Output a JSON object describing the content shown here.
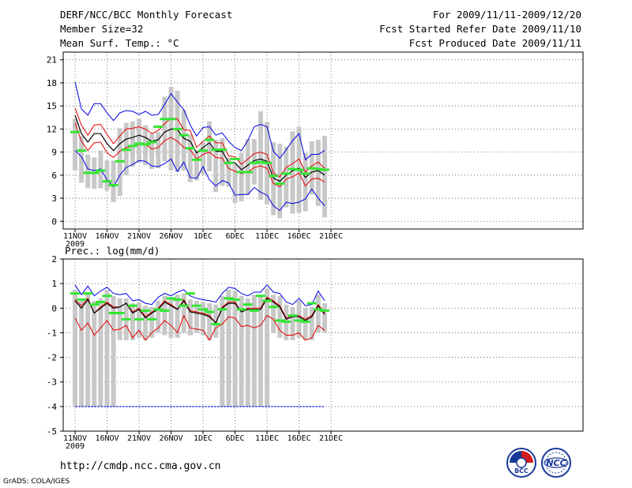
{
  "header": {
    "title": "DERF/NCC/BCC Monthly Forecast",
    "member_size": "Member Size=32",
    "variable": "Mean Surf. Temp.: °C",
    "period": "For 2009/11/11-2009/12/20",
    "started": "Fcst Started Refer Date 2009/11/10",
    "produced": "Fcst Produced Date 2009/11/11"
  },
  "footer": {
    "url": "http://cmdp.ncc.cma.gov.cn",
    "grads": "GrADS: COLA/IGES",
    "logo_left": "BCC",
    "logo_right": "NCC"
  },
  "colors": {
    "box": "#c8c8c8",
    "median": "#32e632",
    "mean": "#000000",
    "pct": "#e60000",
    "extreme": "#0000e6",
    "grid": "#555555"
  },
  "chart_data": [
    {
      "type": "line",
      "title": "Mean Surf. Temp.: °C",
      "x_tick_labels": [
        "11NOV",
        "16NOV",
        "21NOV",
        "26NOV",
        "1DEC",
        "6DEC",
        "11DEC",
        "16DEC",
        "21DEC"
      ],
      "x_year_label": "2009",
      "ylim": [
        -1,
        22
      ],
      "y_ticks": [
        0,
        3,
        6,
        9,
        12,
        15,
        18,
        21
      ],
      "days": 40,
      "series": [
        {
          "name": "max",
          "values": [
            18.1,
            14.6,
            13.8,
            15.3,
            15.3,
            14.1,
            13.1,
            14.1,
            14.4,
            14.3,
            13.9,
            14.3,
            13.8,
            13.9,
            15.2,
            16.6,
            15.5,
            14.5,
            12.5,
            11.1,
            12.2,
            12.3,
            11.2,
            11.5,
            10.4,
            9.6,
            9.2,
            10.5,
            12.3,
            12.6,
            12.3,
            9.1,
            8.2,
            9.3,
            10.5,
            11.4,
            8.0,
            8.7,
            8.7,
            9.2
          ]
        },
        {
          "name": "p90",
          "values": [
            14.7,
            12.5,
            11.2,
            12.5,
            12.6,
            11.3,
            10.1,
            11.1,
            12.0,
            12.1,
            12.3,
            12.0,
            11.4,
            11.8,
            12.7,
            13.4,
            13.3,
            11.9,
            11.8,
            9.6,
            10.4,
            11.1,
            10.2,
            10.2,
            8.5,
            8.4,
            7.4,
            8.1,
            8.8,
            9.0,
            8.7,
            6.3,
            5.8,
            7.0,
            7.5,
            8.1,
            6.4,
            7.2,
            7.7,
            6.9
          ]
        },
        {
          "name": "mean",
          "values": [
            13.8,
            11.4,
            10.3,
            11.4,
            11.4,
            10.1,
            9.2,
            10.1,
            10.7,
            10.9,
            11.2,
            10.9,
            10.4,
            10.6,
            11.6,
            12.0,
            11.9,
            10.8,
            10.4,
            8.9,
            9.6,
            10.2,
            9.1,
            9.1,
            7.7,
            7.6,
            6.7,
            7.3,
            7.9,
            8.1,
            7.8,
            5.6,
            5.2,
            6.0,
            6.6,
            6.9,
            5.7,
            6.4,
            6.6,
            6.0
          ]
        },
        {
          "name": "p10",
          "values": [
            12.8,
            10.4,
            9.2,
            10.2,
            10.3,
            8.9,
            8.3,
            9.1,
            9.6,
            9.7,
            10.0,
            10.0,
            9.4,
            9.6,
            10.5,
            10.9,
            10.4,
            9.6,
            9.3,
            8.1,
            8.7,
            9.0,
            8.3,
            8.2,
            6.9,
            6.5,
            6.2,
            6.4,
            7.0,
            7.2,
            6.9,
            4.9,
            4.5,
            5.5,
            5.8,
            6.3,
            4.6,
            5.5,
            5.6,
            5.1
          ]
        },
        {
          "name": "min",
          "values": [
            9.2,
            8.4,
            6.8,
            6.6,
            6.8,
            5.4,
            4.5,
            6.0,
            7.0,
            7.4,
            7.9,
            7.8,
            7.2,
            7.1,
            7.5,
            8.1,
            6.5,
            7.7,
            5.7,
            5.6,
            7.1,
            5.4,
            4.6,
            5.3,
            5.0,
            3.4,
            3.5,
            3.5,
            4.4,
            3.8,
            3.4,
            2.0,
            1.4,
            2.5,
            2.3,
            2.5,
            2.9,
            4.2,
            3.0,
            2.0
          ]
        },
        {
          "name": "box_top",
          "values": [
            13.3,
            11.1,
            8.7,
            8.3,
            9.2,
            7.9,
            7.9,
            12.1,
            12.8,
            13.0,
            13.3,
            12.5,
            11.4,
            11.6,
            16.2,
            17.5,
            17.0,
            14.5,
            11.3,
            9.2,
            10.3,
            13.0,
            10.6,
            10.8,
            8.3,
            7.5,
            8.9,
            10.7,
            10.7,
            14.3,
            12.9,
            10.3,
            10.1,
            9.7,
            11.7,
            12.3,
            8.9,
            10.4,
            10.6,
            11.1
          ]
        },
        {
          "name": "box_bottom",
          "values": [
            6.6,
            5.0,
            4.3,
            4.2,
            4.3,
            4.0,
            2.5,
            3.3,
            6.0,
            7.1,
            7.6,
            7.3,
            6.8,
            6.9,
            7.8,
            6.6,
            6.4,
            6.6,
            5.1,
            5.3,
            6.1,
            6.5,
            3.8,
            4.6,
            4.5,
            2.4,
            2.6,
            3.4,
            4.8,
            2.8,
            2.2,
            0.8,
            0.4,
            1.8,
            1.0,
            1.1,
            1.3,
            3.5,
            2.0,
            0.5
          ]
        },
        {
          "name": "median",
          "values": [
            11.6,
            9.2,
            6.3,
            6.3,
            6.6,
            5.2,
            4.7,
            7.8,
            9.3,
            9.8,
            10.1,
            10.0,
            10.3,
            12.3,
            13.3,
            13.3,
            12.0,
            11.2,
            9.5,
            8.0,
            9.2,
            10.6,
            9.3,
            9.3,
            7.6,
            8.1,
            6.4,
            6.4,
            7.6,
            7.7,
            7.6,
            5.9,
            4.9,
            6.2,
            6.8,
            6.7,
            6.2,
            6.9,
            6.8,
            6.7
          ]
        }
      ]
    },
    {
      "type": "line",
      "title": "Prec.: log(mm/d)",
      "x_tick_labels": [
        "11NOV",
        "16NOV",
        "21NOV",
        "26NOV",
        "1DEC",
        "6DEC",
        "11DEC",
        "16DEC",
        "21DEC"
      ],
      "x_year_label": "2009",
      "ylim": [
        -5,
        2
      ],
      "y_ticks": [
        -5,
        -4,
        -3,
        -2,
        -1,
        0,
        1,
        2
      ],
      "days": 40,
      "series": [
        {
          "name": "max",
          "values": [
            0.95,
            0.55,
            0.9,
            0.5,
            0.7,
            0.85,
            0.6,
            0.55,
            0.6,
            0.3,
            0.35,
            0.2,
            0.15,
            0.45,
            0.6,
            0.5,
            0.65,
            0.75,
            0.5,
            0.4,
            0.35,
            0.3,
            0.25,
            0.6,
            0.85,
            0.8,
            0.6,
            0.5,
            0.65,
            0.65,
            0.95,
            0.65,
            0.6,
            0.25,
            0.15,
            0.4,
            0.1,
            0.15,
            0.7,
            0.3
          ]
        },
        {
          "name": "p90",
          "values": [
            0.35,
            0.1,
            0.4,
            -0.2,
            0.05,
            0.25,
            0.05,
            0.05,
            0.2,
            -0.15,
            0.0,
            -0.35,
            -0.15,
            0.0,
            0.3,
            0.15,
            -0.05,
            0.35,
            -0.1,
            -0.15,
            -0.2,
            -0.3,
            -0.6,
            0.05,
            0.25,
            0.25,
            -0.15,
            0.0,
            0.0,
            0.0,
            0.45,
            0.3,
            0.1,
            -0.4,
            -0.3,
            -0.3,
            -0.45,
            -0.3,
            0.15,
            -0.2
          ]
        },
        {
          "name": "mean",
          "values": [
            0.3,
            0.0,
            0.35,
            -0.2,
            0.0,
            0.2,
            0.0,
            0.05,
            0.2,
            -0.2,
            -0.05,
            -0.4,
            -0.2,
            -0.05,
            0.25,
            0.1,
            -0.05,
            0.3,
            -0.15,
            -0.2,
            -0.25,
            -0.35,
            -0.6,
            0.0,
            0.2,
            0.2,
            -0.15,
            -0.05,
            -0.05,
            -0.05,
            0.4,
            0.25,
            0.05,
            -0.45,
            -0.35,
            -0.35,
            -0.5,
            -0.35,
            0.1,
            -0.25
          ]
        },
        {
          "name": "p10",
          "values": [
            -0.4,
            -0.9,
            -0.6,
            -1.1,
            -0.8,
            -0.5,
            -0.9,
            -0.85,
            -0.7,
            -1.2,
            -0.9,
            -1.3,
            -1.0,
            -0.8,
            -0.5,
            -0.7,
            -1.0,
            -0.3,
            -0.8,
            -0.85,
            -0.9,
            -1.3,
            -0.8,
            -0.65,
            -0.35,
            -0.4,
            -0.75,
            -0.7,
            -0.8,
            -0.7,
            -0.3,
            -0.45,
            -0.9,
            -1.1,
            -1.1,
            -1.0,
            -1.3,
            -1.2,
            -0.7,
            -0.9
          ]
        },
        {
          "name": "floor",
          "values": [
            -4,
            -4,
            -4,
            -4,
            -4,
            -4,
            -4,
            -4,
            -4,
            -4,
            -4,
            -4,
            -4,
            -4,
            -4,
            -4,
            -4,
            -4,
            -4,
            -4,
            -4,
            -4,
            -4,
            -4,
            -4,
            -4,
            -4,
            -4,
            -4,
            -4,
            -4,
            -4,
            -4,
            -4,
            -4,
            -4,
            -4,
            -4,
            -4,
            -4
          ]
        },
        {
          "name": "box_top",
          "values": [
            0.75,
            0.3,
            0.6,
            0.3,
            0.4,
            0.75,
            0.5,
            0.4,
            0.4,
            0.2,
            0.25,
            0.1,
            0.05,
            0.3,
            0.5,
            0.4,
            0.55,
            0.6,
            0.35,
            0.3,
            0.25,
            0.2,
            0.15,
            0.5,
            0.75,
            0.7,
            0.5,
            0.4,
            0.55,
            0.55,
            0.8,
            0.55,
            0.5,
            0.15,
            0.05,
            0.3,
            0.0,
            0.05,
            0.55,
            0.2
          ]
        },
        {
          "name": "box_bottom",
          "values": [
            -4,
            -4,
            -4,
            -4,
            -4,
            -4,
            -4,
            -1.3,
            -1.3,
            -1.3,
            -1.2,
            -1.3,
            -1.2,
            -1.0,
            -1.1,
            -1.2,
            -1.2,
            -1.0,
            -1.1,
            -1.0,
            -1.1,
            -1.3,
            -1.2,
            -4,
            -4,
            -4,
            -4,
            -4,
            -4,
            -4,
            -4,
            -1.0,
            -1.2,
            -1.3,
            -1.3,
            -1.2,
            -1.3,
            -1.3,
            -1.0,
            -1.0
          ]
        },
        {
          "name": "median",
          "values": [
            0.6,
            0.35,
            0.6,
            0.15,
            0.25,
            0.5,
            -0.2,
            -0.2,
            -0.45,
            0.1,
            -0.45,
            -0.1,
            -0.45,
            -0.05,
            -0.1,
            0.4,
            0.35,
            0.1,
            0.6,
            0.1,
            -0.05,
            -0.15,
            -0.65,
            -0.05,
            0.4,
            0.35,
            -0.05,
            0.15,
            -0.1,
            0.5,
            0.3,
            0.05,
            -0.5,
            -0.55,
            -0.3,
            -0.5,
            -0.55,
            0.2,
            -0.05,
            -0.1
          ]
        }
      ]
    }
  ]
}
